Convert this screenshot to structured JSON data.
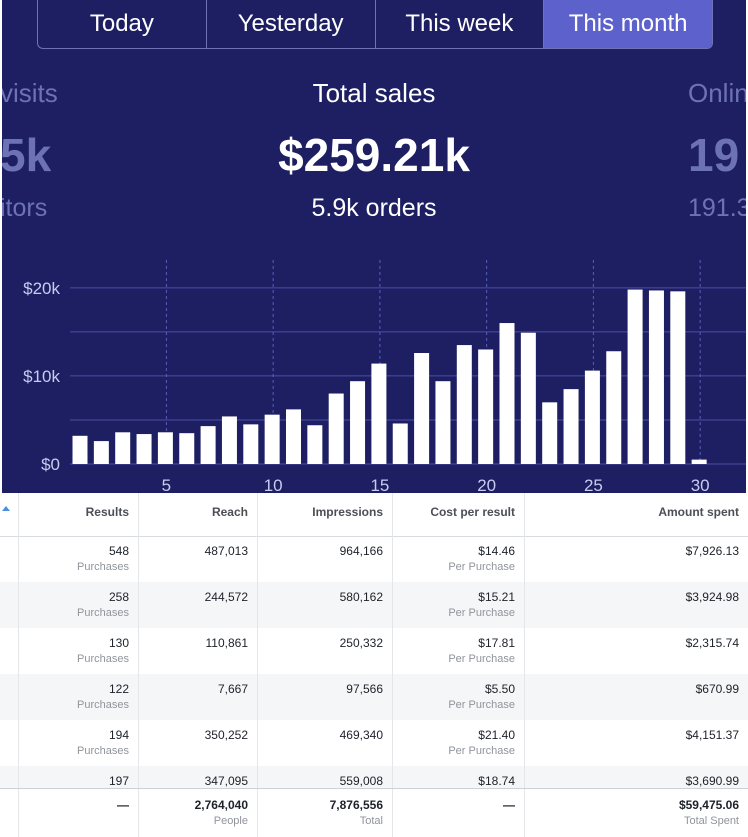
{
  "tabs": [
    {
      "label": "Today",
      "active": false
    },
    {
      "label": "Yesterday",
      "active": false
    },
    {
      "label": "This week",
      "active": false
    },
    {
      "label": "This month",
      "active": true
    }
  ],
  "stats": {
    "left": {
      "title": "visits",
      "value": "5k",
      "sub": "itors"
    },
    "center": {
      "title": "Total sales",
      "value": "$259.21k",
      "sub": "5.9k orders"
    },
    "right": {
      "title": "Onlin",
      "value": "19",
      "sub": "191.3"
    }
  },
  "colors": {
    "dashboard_bg": "#1d1f62",
    "active_tab": "#5d61cc",
    "bar": "#ffffff",
    "grid": "#4a4fa6"
  },
  "chart_data": {
    "type": "bar",
    "x": [
      1,
      2,
      3,
      4,
      5,
      6,
      7,
      8,
      9,
      10,
      11,
      12,
      13,
      14,
      15,
      16,
      17,
      18,
      19,
      20,
      21,
      22,
      23,
      24,
      25,
      26,
      27,
      28,
      29,
      30
    ],
    "values": [
      3200,
      2600,
      3600,
      3400,
      3600,
      3500,
      4300,
      5400,
      4500,
      5600,
      6200,
      4400,
      8000,
      9400,
      11400,
      4600,
      12600,
      9400,
      13500,
      13000,
      16000,
      14900,
      7000,
      8500,
      10600,
      12800,
      19800,
      19700,
      19600,
      500
    ],
    "x_ticks": [
      "5",
      "10",
      "15",
      "20",
      "25",
      "30"
    ],
    "x_tick_values": [
      5,
      10,
      15,
      20,
      25,
      30
    ],
    "y_ticks": [
      "$0",
      "$10k",
      "$20k"
    ],
    "y_tick_values": [
      0,
      10000,
      20000
    ],
    "ylim": [
      0,
      22000
    ],
    "grid": true
  },
  "table": {
    "columns": [
      "Results",
      "Reach",
      "Impressions",
      "Cost per result",
      "Amount spent"
    ],
    "rows": [
      {
        "results": "548",
        "results_sub": "Purchases",
        "reach": "487,013",
        "impressions": "964,166",
        "cost": "$14.46",
        "cost_sub": "Per Purchase",
        "spent": "$7,926.13"
      },
      {
        "results": "258",
        "results_sub": "Purchases",
        "reach": "244,572",
        "impressions": "580,162",
        "cost": "$15.21",
        "cost_sub": "Per Purchase",
        "spent": "$3,924.98"
      },
      {
        "results": "130",
        "results_sub": "Purchases",
        "reach": "110,861",
        "impressions": "250,332",
        "cost": "$17.81",
        "cost_sub": "Per Purchase",
        "spent": "$2,315.74"
      },
      {
        "results": "122",
        "results_sub": "Purchases",
        "reach": "7,667",
        "impressions": "97,566",
        "cost": "$5.50",
        "cost_sub": "Per Purchase",
        "spent": "$670.99"
      },
      {
        "results": "194",
        "results_sub": "Purchases",
        "reach": "350,252",
        "impressions": "469,340",
        "cost": "$21.40",
        "cost_sub": "Per Purchase",
        "spent": "$4,151.37"
      },
      {
        "results": "197",
        "results_sub": "",
        "reach": "347,095",
        "impressions": "559,008",
        "cost": "$18.74",
        "cost_sub": "",
        "spent": "$3,690.99"
      }
    ],
    "totals": {
      "results": "—",
      "reach": "2,764,040",
      "reach_sub": "People",
      "impressions": "7,876,556",
      "impressions_sub": "Total",
      "cost": "—",
      "spent": "$59,475.06",
      "spent_sub": "Total Spent"
    }
  }
}
